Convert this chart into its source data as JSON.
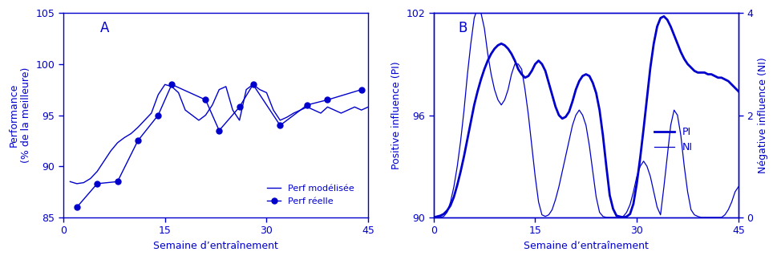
{
  "blue_color": "#0000CC",
  "panel_A": {
    "label": "A",
    "xlabel": "Semaine d’entraînement",
    "ylabel": "Performance\n(% de la meilleure)",
    "ylim": [
      85,
      105
    ],
    "xlim": [
      0,
      45
    ],
    "yticks": [
      85,
      90,
      95,
      100,
      105
    ],
    "xticks": [
      0,
      15,
      30,
      45
    ],
    "modeled_x": [
      1,
      2,
      3,
      4,
      5,
      6,
      7,
      8,
      9,
      10,
      11,
      12,
      13,
      14,
      15,
      16,
      17,
      18,
      19,
      20,
      21,
      22,
      23,
      24,
      25,
      26,
      27,
      28,
      29,
      30,
      31,
      32,
      33,
      34,
      35,
      36,
      37,
      38,
      39,
      40,
      41,
      42,
      43,
      44,
      45
    ],
    "modeled_y": [
      88.5,
      88.3,
      88.4,
      88.8,
      89.5,
      90.5,
      91.5,
      92.3,
      92.8,
      93.2,
      93.8,
      94.5,
      95.2,
      97.0,
      98.0,
      97.8,
      97.2,
      95.5,
      95.0,
      94.5,
      95.0,
      96.0,
      97.5,
      97.8,
      95.5,
      94.5,
      97.5,
      98.0,
      97.5,
      97.2,
      95.5,
      94.5,
      94.8,
      95.2,
      95.5,
      95.8,
      95.5,
      95.2,
      95.8,
      95.5,
      95.2,
      95.5,
      95.8,
      95.5,
      95.8
    ],
    "real_x": [
      2,
      5,
      8,
      11,
      14,
      16,
      21,
      23,
      26,
      28,
      32,
      36,
      39,
      44
    ],
    "real_y": [
      86.0,
      88.3,
      88.5,
      92.5,
      95.0,
      98.0,
      96.5,
      93.5,
      95.8,
      98.0,
      94.0,
      96.0,
      96.5,
      97.5
    ],
    "legend_modeled": "Perf modélisée",
    "legend_real": "Perf réelle"
  },
  "panel_B": {
    "label": "B",
    "xlabel": "Semaine d’entraînement",
    "ylabel_left": "Positive influence (PI)",
    "ylabel_right": "Négative influence (NI)",
    "ylim_left": [
      90,
      102
    ],
    "ylim_right": [
      0,
      4
    ],
    "xlim": [
      0,
      45
    ],
    "yticks_left": [
      90,
      96,
      102
    ],
    "yticks_right": [
      0,
      2,
      4
    ],
    "xticks": [
      0,
      15,
      30,
      45
    ],
    "PI_x": [
      0.0,
      0.5,
      1.0,
      1.5,
      2.0,
      2.5,
      3.0,
      3.5,
      4.0,
      4.5,
      5.0,
      5.5,
      6.0,
      6.5,
      7.0,
      7.5,
      8.0,
      8.5,
      9.0,
      9.5,
      10.0,
      10.5,
      11.0,
      11.5,
      12.0,
      12.5,
      13.0,
      13.5,
      14.0,
      14.5,
      15.0,
      15.5,
      16.0,
      16.5,
      17.0,
      17.5,
      18.0,
      18.5,
      19.0,
      19.5,
      20.0,
      20.5,
      21.0,
      21.5,
      22.0,
      22.5,
      23.0,
      23.5,
      24.0,
      24.5,
      25.0,
      25.5,
      26.0,
      26.5,
      27.0,
      27.5,
      28.0,
      28.5,
      29.0,
      29.5,
      30.0,
      30.5,
      31.0,
      31.5,
      32.0,
      32.5,
      33.0,
      33.5,
      34.0,
      34.5,
      35.0,
      35.5,
      36.0,
      36.5,
      37.0,
      37.5,
      38.0,
      38.5,
      39.0,
      39.5,
      40.0,
      40.5,
      41.0,
      41.5,
      42.0,
      42.5,
      43.0,
      43.5,
      44.0,
      44.5,
      45.0
    ],
    "PI_y": [
      90.0,
      90.05,
      90.1,
      90.2,
      90.4,
      90.7,
      91.2,
      91.9,
      92.7,
      93.6,
      94.6,
      95.6,
      96.6,
      97.4,
      98.1,
      98.7,
      99.2,
      99.6,
      99.9,
      100.1,
      100.2,
      100.1,
      99.9,
      99.6,
      99.2,
      98.7,
      98.4,
      98.2,
      98.3,
      98.6,
      99.0,
      99.2,
      99.0,
      98.6,
      97.9,
      97.2,
      96.5,
      96.0,
      95.8,
      95.9,
      96.2,
      96.8,
      97.5,
      98.0,
      98.3,
      98.4,
      98.3,
      97.9,
      97.3,
      96.3,
      94.8,
      93.0,
      91.3,
      90.5,
      90.1,
      90.05,
      90.0,
      90.05,
      90.2,
      90.8,
      92.0,
      93.5,
      95.2,
      97.0,
      98.8,
      100.2,
      101.2,
      101.7,
      101.8,
      101.6,
      101.2,
      100.7,
      100.2,
      99.7,
      99.3,
      99.0,
      98.8,
      98.6,
      98.5,
      98.5,
      98.5,
      98.4,
      98.4,
      98.3,
      98.2,
      98.2,
      98.1,
      98.0,
      97.8,
      97.6,
      97.4
    ],
    "NI_x": [
      0.0,
      0.5,
      1.0,
      1.5,
      2.0,
      2.5,
      3.0,
      3.5,
      4.0,
      4.5,
      5.0,
      5.5,
      6.0,
      6.5,
      7.0,
      7.5,
      8.0,
      8.5,
      9.0,
      9.5,
      10.0,
      10.5,
      11.0,
      11.5,
      12.0,
      12.5,
      13.0,
      13.5,
      14.0,
      14.5,
      15.0,
      15.5,
      16.0,
      16.5,
      17.0,
      17.5,
      18.0,
      18.5,
      19.0,
      19.5,
      20.0,
      20.5,
      21.0,
      21.5,
      22.0,
      22.5,
      23.0,
      23.5,
      24.0,
      24.5,
      25.0,
      25.5,
      26.0,
      26.5,
      27.0,
      27.5,
      28.0,
      28.5,
      29.0,
      29.5,
      30.0,
      30.5,
      31.0,
      31.5,
      32.0,
      32.5,
      33.0,
      33.5,
      34.0,
      34.5,
      35.0,
      35.5,
      36.0,
      36.5,
      37.0,
      37.5,
      38.0,
      38.5,
      39.0,
      39.5,
      40.0,
      40.5,
      41.0,
      41.5,
      42.0,
      42.5,
      43.0,
      43.5,
      44.0,
      44.5,
      45.0
    ],
    "NI_y": [
      0.0,
      0.0,
      0.0,
      0.02,
      0.1,
      0.3,
      0.6,
      1.0,
      1.5,
      2.1,
      2.8,
      3.4,
      3.9,
      4.1,
      4.0,
      3.7,
      3.2,
      2.8,
      2.5,
      2.3,
      2.2,
      2.3,
      2.5,
      2.8,
      3.0,
      3.0,
      2.9,
      2.5,
      2.0,
      1.4,
      0.8,
      0.3,
      0.05,
      0.02,
      0.05,
      0.15,
      0.35,
      0.6,
      0.9,
      1.2,
      1.5,
      1.8,
      2.0,
      2.1,
      2.0,
      1.8,
      1.4,
      0.9,
      0.4,
      0.1,
      0.02,
      0.0,
      0.0,
      0.0,
      0.0,
      0.0,
      0.02,
      0.1,
      0.25,
      0.5,
      0.8,
      1.0,
      1.1,
      1.0,
      0.8,
      0.5,
      0.2,
      0.05,
      0.6,
      1.2,
      1.8,
      2.1,
      2.0,
      1.6,
      1.0,
      0.5,
      0.15,
      0.05,
      0.02,
      0.0,
      0.0,
      0.0,
      0.0,
      0.0,
      0.0,
      0.0,
      0.05,
      0.15,
      0.3,
      0.5,
      0.6
    ],
    "legend_PI": "PI",
    "legend_NI": "NI"
  }
}
